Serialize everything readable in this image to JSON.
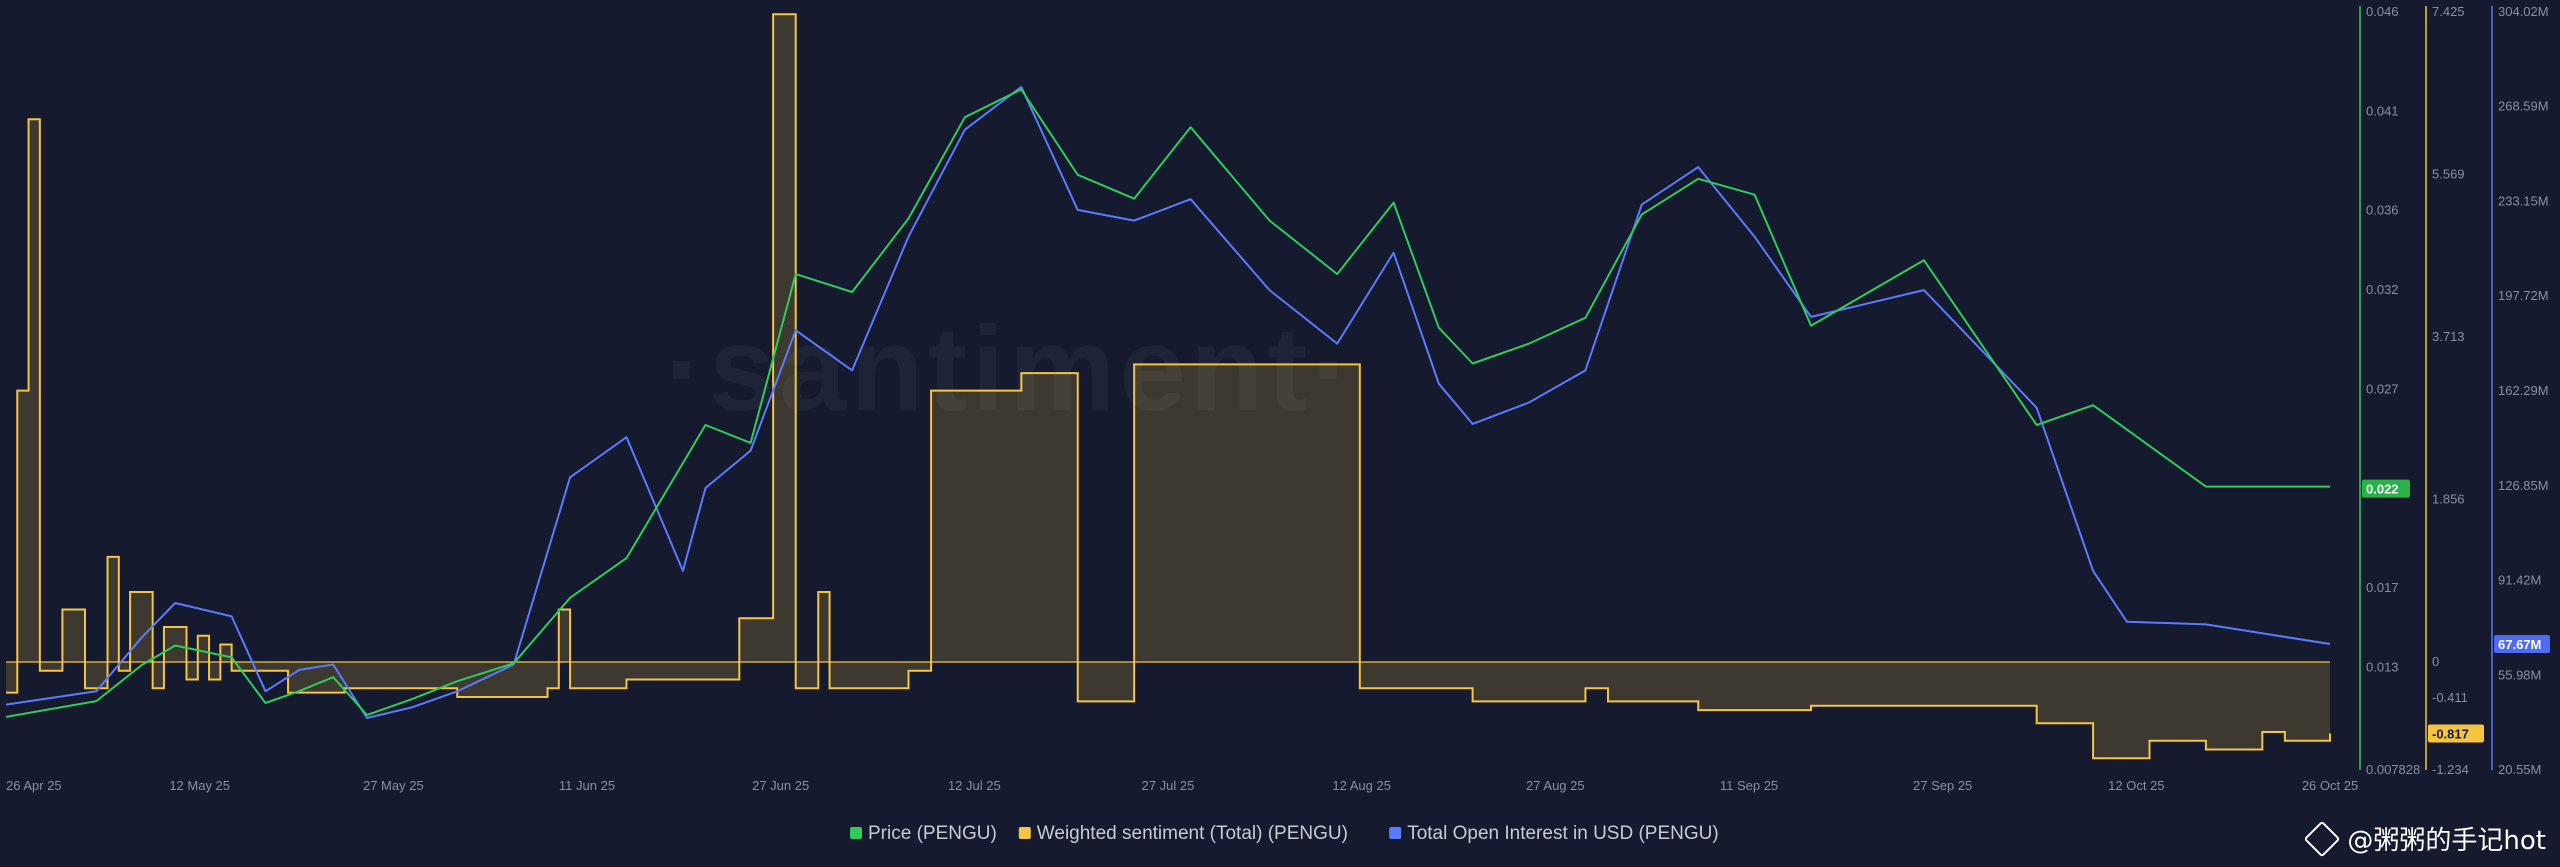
{
  "watermark": "·santiment·",
  "credit": "@粥粥的手记hot",
  "chart_data": {
    "type": "line",
    "x_ticks": [
      "26 Apr 25",
      "12 May 25",
      "27 May 25",
      "11 Jun 25",
      "27 Jun 25",
      "12 Jul 25",
      "27 Jul 25",
      "12 Aug 25",
      "27 Aug 25",
      "11 Sep 25",
      "27 Sep 25",
      "12 Oct 25",
      "26 Oct 25"
    ],
    "axes": {
      "price": {
        "ticks": [
          "0.046",
          "0.041",
          "0.036",
          "0.032",
          "0.027",
          "0.022",
          "0.017",
          "0.013",
          "0.007828"
        ],
        "range": [
          0.007828,
          0.046
        ],
        "color": "#2ecc5a"
      },
      "sentiment": {
        "ticks": [
          "7.425",
          "5.569",
          "3.713",
          "1.856",
          "0",
          "-0.411",
          "-1.234"
        ],
        "range": [
          -1.234,
          7.425
        ],
        "color": "#f5c542"
      },
      "open_interest": {
        "ticks": [
          "304.02M",
          "268.59M",
          "233.15M",
          "197.72M",
          "162.29M",
          "126.85M",
          "91.42M",
          "55.98M",
          "20.55M"
        ],
        "range": [
          20.55,
          304.02
        ],
        "unit": "M",
        "color": "#5b7bff"
      }
    },
    "current_values": {
      "price": "0.022",
      "sentiment": "-0.817",
      "open_interest": "67.67M"
    },
    "series": [
      {
        "name": "Price (PENGU)",
        "key": "price",
        "color": "#2ecc5a",
        "x": [
          0,
          8,
          12,
          15,
          20,
          23,
          26,
          29,
          32,
          36,
          40,
          45,
          50,
          55,
          62,
          66,
          70,
          75,
          80,
          85,
          90,
          95,
          100,
          105,
          112,
          118,
          123,
          127,
          130,
          135,
          140,
          145,
          150,
          155,
          160,
          170,
          180,
          185,
          195,
          206
        ],
        "y": [
          0.0105,
          0.0113,
          0.0131,
          0.0141,
          0.0135,
          0.0112,
          0.0118,
          0.0125,
          0.0106,
          0.0114,
          0.0123,
          0.0132,
          0.0165,
          0.0185,
          0.0252,
          0.0243,
          0.0328,
          0.0319,
          0.0356,
          0.0407,
          0.0421,
          0.0378,
          0.0366,
          0.0402,
          0.0355,
          0.0328,
          0.0364,
          0.0301,
          0.0283,
          0.0293,
          0.0306,
          0.0358,
          0.0376,
          0.0368,
          0.0302,
          0.0335,
          0.0252,
          0.0262,
          0.0221,
          0.0221
        ]
      },
      {
        "name": "Weighted sentiment (Total) (PENGU)",
        "key": "sentiment",
        "color": "#f5c542",
        "x": [
          0,
          1,
          2,
          3,
          5,
          7,
          9,
          10,
          11,
          13,
          14,
          16,
          17,
          18,
          19,
          20,
          25,
          30,
          40,
          48,
          49,
          50,
          55,
          65,
          68,
          69,
          70,
          72,
          73,
          80,
          82,
          90,
          95,
          100,
          120,
          130,
          139,
          140,
          142,
          150,
          160,
          180,
          185,
          190,
          195,
          200,
          202,
          206
        ],
        "y": [
          -0.35,
          3.1,
          6.2,
          -0.1,
          0.6,
          -0.3,
          1.2,
          -0.1,
          0.8,
          -0.3,
          0.4,
          -0.2,
          0.3,
          -0.2,
          0.2,
          -0.1,
          -0.35,
          -0.3,
          -0.4,
          -0.3,
          0.6,
          -0.3,
          -0.2,
          0.5,
          7.4,
          7.4,
          -0.3,
          0.8,
          -0.3,
          -0.1,
          3.1,
          3.3,
          -0.45,
          3.4,
          -0.3,
          -0.45,
          -0.45,
          -0.3,
          -0.45,
          -0.55,
          -0.5,
          -0.7,
          -1.1,
          -0.9,
          -1.0,
          -0.8,
          -0.9,
          -0.817
        ]
      },
      {
        "name": "Total Open Interest in USD (PENGU)",
        "key": "open_interest",
        "color": "#5b7bff",
        "x": [
          0,
          8,
          12,
          15,
          20,
          23,
          26,
          29,
          32,
          36,
          40,
          45,
          50,
          55,
          60,
          62,
          66,
          70,
          75,
          80,
          85,
          90,
          95,
          100,
          105,
          112,
          118,
          123,
          127,
          130,
          135,
          140,
          145,
          150,
          155,
          160,
          170,
          180,
          185,
          188,
          195,
          206
        ],
        "y": [
          45,
          50,
          70,
          83,
          78,
          50,
          58,
          60,
          40,
          44,
          50,
          60,
          130,
          145,
          95,
          126,
          140,
          185,
          170,
          220,
          260,
          276,
          230,
          226,
          234,
          200,
          180,
          214,
          165,
          150,
          158,
          170,
          232,
          246,
          220,
          190,
          200,
          156,
          95,
          76,
          75,
          67.67
        ]
      }
    ],
    "baseline": 0,
    "xlim": [
      0,
      206
    ]
  }
}
